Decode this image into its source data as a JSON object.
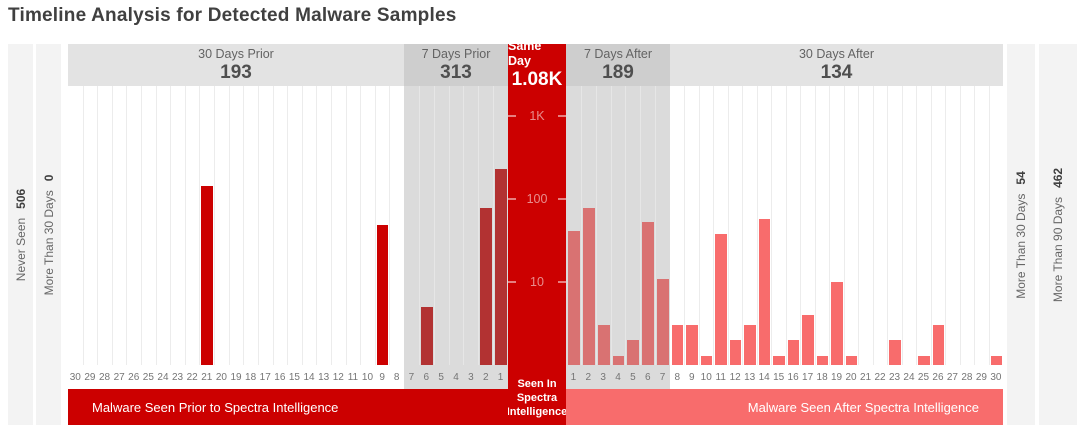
{
  "title": "Timeline Analysis for Detected Malware Samples",
  "colors": {
    "bright_red": "#cc0000",
    "dark_red": "#b23232",
    "muted_salmon": "#d97272",
    "salmon": "#f86c6c",
    "zone_gray": "#dbdbdb",
    "header_light_gray": "#e3e3e3",
    "header_dark_gray": "#cecece",
    "side_gray": "#f3f3f3"
  },
  "sides": {
    "left": [
      {
        "label": "Never Seen",
        "value": "506"
      },
      {
        "label": "More Than 30 Days",
        "value": "0"
      }
    ],
    "right": [
      {
        "label": "More Than 30 Days",
        "value": "54"
      },
      {
        "label": "More Than 90 Days",
        "value": "462"
      }
    ]
  },
  "footer": {
    "prior": "Malware Seen Prior to Spectra Intelligence",
    "center_lines": [
      "Seen In",
      "Spectra",
      "Intelligence"
    ],
    "after": "Malware Seen After Spectra Intelligence"
  },
  "y_axis": {
    "scale": "log",
    "ticks": [
      {
        "label": "1K",
        "value": 1000
      },
      {
        "label": "100",
        "value": 100
      },
      {
        "label": "10",
        "value": 10
      }
    ]
  },
  "chart_data": {
    "type": "bar",
    "y_scale": "log",
    "ylim": [
      1,
      1200
    ],
    "title": "Timeline Analysis for Detected Malware Samples",
    "zones": [
      {
        "id": "prior30",
        "label": "30 Days Prior",
        "total": "193",
        "bar_color": "#cc0000",
        "days": [
          30,
          29,
          28,
          27,
          26,
          25,
          24,
          23,
          22,
          21,
          20,
          19,
          18,
          17,
          16,
          15,
          14,
          13,
          12,
          11,
          10,
          9,
          8
        ],
        "values": [
          0,
          0,
          0,
          0,
          0,
          0,
          0,
          0,
          0,
          145,
          0,
          0,
          0,
          0,
          0,
          0,
          0,
          0,
          0,
          0,
          0,
          48,
          0
        ]
      },
      {
        "id": "prior7",
        "label": "7 Days Prior",
        "total": "313",
        "bar_color": "#b23232",
        "days": [
          7,
          6,
          5,
          4,
          3,
          2,
          1
        ],
        "values": [
          0,
          5,
          0,
          0,
          0,
          78,
          230
        ]
      },
      {
        "id": "sameday",
        "label": "Same Day",
        "total": "1.08K",
        "bar_color": "#cc0000",
        "value": 1080
      },
      {
        "id": "after7",
        "label": "7 Days After",
        "total": "189",
        "bar_color": "#d97272",
        "days": [
          1,
          2,
          3,
          4,
          5,
          6,
          7
        ],
        "values": [
          41,
          78,
          3,
          1,
          2,
          53,
          11
        ]
      },
      {
        "id": "after30",
        "label": "30 Days After",
        "total": "134",
        "bar_color": "#f86c6c",
        "days": [
          8,
          9,
          10,
          11,
          12,
          13,
          14,
          15,
          16,
          17,
          18,
          19,
          20,
          21,
          22,
          23,
          24,
          25,
          26,
          27,
          28,
          29,
          30
        ],
        "values": [
          3,
          3,
          1,
          38,
          2,
          3,
          58,
          1,
          2,
          4,
          1,
          10,
          1,
          0,
          0,
          2,
          0,
          1,
          3,
          0,
          0,
          0,
          1
        ]
      }
    ]
  }
}
